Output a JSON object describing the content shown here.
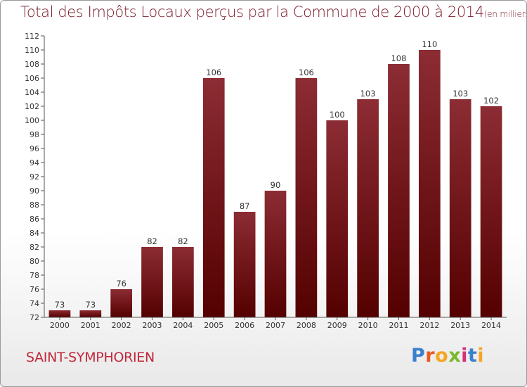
{
  "title": "Total des Impôts Locaux perçus par la Commune de 2000 à 2014",
  "title_unit": "(en milliers d'€)",
  "commune": "SAINT-SYMPHORIEN",
  "logo": {
    "text": "Proxiti",
    "letters": [
      {
        "ch": "P",
        "color": "#3a7fd0"
      },
      {
        "ch": "r",
        "color": "#e85a1e"
      },
      {
        "ch": "o",
        "color": "#f5a623"
      },
      {
        "ch": "x",
        "color": "#7ab82e"
      },
      {
        "ch": "i",
        "color": "#d6307a"
      },
      {
        "ch": "t",
        "color": "#3a7fd0"
      },
      {
        "ch": "i",
        "color": "#f5a623"
      }
    ]
  },
  "colors": {
    "bar_top": "#8c2c34",
    "bar_bottom": "#540000",
    "title": "#7a1a2a",
    "commune": "#c0283c"
  },
  "chart_data": {
    "type": "bar",
    "categories": [
      "2000",
      "2001",
      "2002",
      "2003",
      "2004",
      "2005",
      "2006",
      "2007",
      "2008",
      "2009",
      "2010",
      "2011",
      "2012",
      "2013",
      "2014"
    ],
    "values": [
      73,
      73,
      76,
      82,
      82,
      106,
      87,
      90,
      106,
      100,
      103,
      108,
      110,
      103,
      102
    ],
    "ylim": [
      72,
      112
    ],
    "yticks": [
      72,
      74,
      76,
      78,
      80,
      82,
      84,
      86,
      88,
      90,
      92,
      94,
      96,
      98,
      100,
      102,
      104,
      106,
      108,
      110,
      112
    ],
    "grid": false,
    "data_labels": true
  }
}
